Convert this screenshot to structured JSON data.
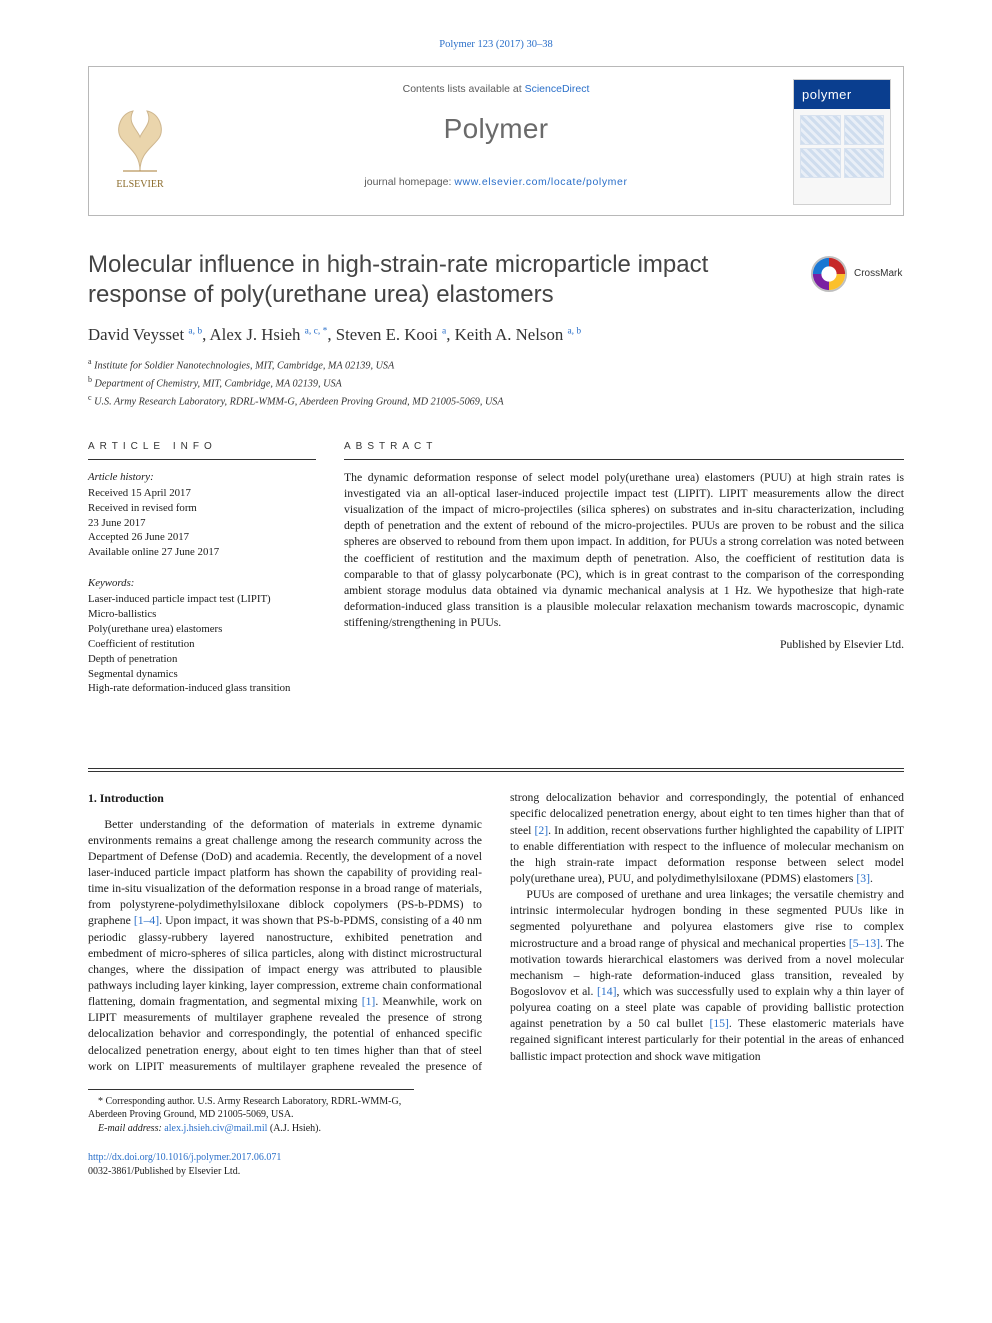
{
  "citation_line": "Polymer 123 (2017) 30–38",
  "masthead": {
    "contents_text": "Contents lists available at ",
    "contents_link": "ScienceDirect",
    "journal_name": "Polymer",
    "homepage_text": "journal homepage: ",
    "homepage_url": "www.elsevier.com/locate/polymer",
    "publisher_word": "ELSEVIER",
    "cover_word": "polymer"
  },
  "crossmark_label": "CrossMark",
  "title": "Molecular influence in high-strain-rate microparticle impact response of poly(urethane urea) elastomers",
  "authors_html": "David Veysset <sup>a, b</sup>, Alex J. Hsieh <sup>a, c, <span class='star'>*</span></sup>, Steven E. Kooi <sup>a</sup>, Keith A. Nelson <sup>a, b</sup>",
  "affiliations": [
    "a Institute for Soldier Nanotechnologies, MIT, Cambridge, MA 02139, USA",
    "b Department of Chemistry, MIT, Cambridge, MA 02139, USA",
    "c U.S. Army Research Laboratory, RDRL-WMM-G, Aberdeen Proving Ground, MD 21005-5069, USA"
  ],
  "article_info": {
    "heading": "ARTICLE INFO",
    "history_label": "Article history:",
    "history": [
      "Received 15 April 2017",
      "Received in revised form",
      "23 June 2017",
      "Accepted 26 June 2017",
      "Available online 27 June 2017"
    ],
    "keywords_label": "Keywords:",
    "keywords": [
      "Laser-induced particle impact test (LIPIT)",
      "Micro-ballistics",
      "Poly(urethane urea) elastomers",
      "Coefficient of restitution",
      "Depth of penetration",
      "Segmental dynamics",
      "High-rate deformation-induced glass transition"
    ]
  },
  "abstract": {
    "heading": "ABSTRACT",
    "text": "The dynamic deformation response of select model poly(urethane urea) elastomers (PUU) at high strain rates is investigated via an all-optical laser-induced projectile impact test (LIPIT). LIPIT measurements allow the direct visualization of the impact of micro-projectiles (silica spheres) on substrates and in-situ characterization, including depth of penetration and the extent of rebound of the micro-projectiles. PUUs are proven to be robust and the silica spheres are observed to rebound from them upon impact. In addition, for PUUs a strong correlation was noted between the coefficient of restitution and the maximum depth of penetration. Also, the coefficient of restitution data is comparable to that of glassy polycarbonate (PC), which is in great contrast to the comparison of the corresponding ambient storage modulus data obtained via dynamic mechanical analysis at 1 Hz. We hypothesize that high-rate deformation-induced glass transition is a plausible molecular relaxation mechanism towards macroscopic, dynamic stiffening/strengthening in PUUs.",
    "published_by": "Published by Elsevier Ltd."
  },
  "section1": {
    "heading": "1. Introduction",
    "p1": "Better understanding of the deformation of materials in extreme dynamic environments remains a great challenge among the research community across the Department of Defense (DoD) and academia. Recently, the development of a novel laser-induced particle impact platform has shown the capability of providing real-time in-situ visualization of the deformation response in a broad range of materials, from polystyrene-polydimethylsiloxane diblock copolymers (PS-b-PDMS) to graphene ",
    "r1": "[1–4]",
    "p2": ". Upon impact, it was shown that PS-b-PDMS, consisting of a 40 nm periodic glassy-rubbery layered nanostructure, exhibited penetration and embedment of micro-spheres of silica particles, along with distinct microstructural changes, where the dissipation of impact energy was attributed to plausible pathways including layer kinking, layer compression, extreme chain conformational flattening, domain fragmentation, and segmental mixing ",
    "r2": "[1]",
    "p3": ". Meanwhile, work on LIPIT measurements of multilayer graphene revealed the presence of strong delocalization behavior and correspondingly, the potential of enhanced specific delocalized penetration energy, about eight to ten times higher than that of steel ",
    "r3": "[2]",
    "p4": ". In addition, recent observations further highlighted the capability of LIPIT to enable differentiation with respect to the influence of molecular mechanism on the high strain-rate impact deformation response between select model poly(urethane urea), PUU, and polydimethylsiloxane (PDMS) elastomers ",
    "r4": "[3]",
    "p5": ".",
    "p6a": "PUUs are composed of urethane and urea linkages; the versatile chemistry and intrinsic intermolecular hydrogen bonding in these segmented PUUs like in segmented polyurethane and polyurea elastomers give rise to complex microstructure and a broad range of physical and mechanical properties ",
    "r5": "[5–13]",
    "p6b": ". The motivation towards hierarchical elastomers was derived from a novel molecular mechanism – high-rate deformation-induced glass transition, revealed by Bogoslovov et al. ",
    "r6": "[14]",
    "p6c": ", which was successfully used to explain why a thin layer of polyurea coating on a steel plate was capable of providing ballistic protection against penetration by a 50 cal bullet ",
    "r7": "[15]",
    "p6d": ". These elastomeric materials have regained significant interest particularly for their potential in the areas of enhanced ballistic impact protection and shock wave mitigation"
  },
  "footnotes": {
    "corresponding": "* Corresponding author. U.S. Army Research Laboratory, RDRL-WMM-G, Aberdeen Proving Ground, MD 21005-5069, USA.",
    "email_label": "E-mail address: ",
    "email": "alex.j.hsieh.civ@mail.mil",
    "email_tail": " (A.J. Hsieh)."
  },
  "bottom": {
    "doi": "http://dx.doi.org/10.1016/j.polymer.2017.06.071",
    "issn_line": "0032-3861/Published by Elsevier Ltd."
  },
  "colors": {
    "link": "#2a6fc9",
    "rule": "#333333",
    "muted": "#6a6a6a"
  }
}
